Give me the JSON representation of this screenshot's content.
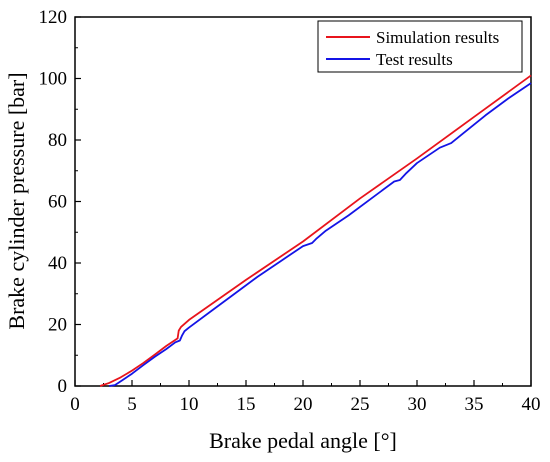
{
  "chart_data": {
    "type": "line",
    "title": "",
    "xlabel": "Brake pedal angle [°]",
    "ylabel": "Brake cylinder pressure [bar]",
    "xlim": [
      0,
      40
    ],
    "ylim": [
      0,
      120
    ],
    "xticks": [
      "0",
      "5",
      "10",
      "15",
      "20",
      "25",
      "30",
      "35",
      "40"
    ],
    "yticks": [
      "0",
      "20",
      "40",
      "60",
      "80",
      "100",
      "120"
    ],
    "grid": false,
    "legend_position": "top-right",
    "series": [
      {
        "name": "Simulation results",
        "color": "#e8141c",
        "x": [
          2.2,
          2.6,
          3.0,
          4.0,
          5.0,
          6.0,
          7.0,
          8.0,
          9.0,
          9.1,
          9.3,
          10.0,
          15.0,
          20.0,
          25.0,
          30.0,
          35.0,
          40.0
        ],
        "y": [
          0.0,
          0.5,
          1.0,
          2.8,
          5.0,
          7.5,
          10.2,
          13.0,
          15.5,
          18.0,
          19.2,
          21.5,
          34.5,
          47.0,
          61.0,
          74.0,
          87.5,
          101.0
        ]
      },
      {
        "name": "Test results",
        "color": "#1414e6",
        "x": [
          3.0,
          3.5,
          4.0,
          5.0,
          6.0,
          7.0,
          8.0,
          8.8,
          9.2,
          9.4,
          9.6,
          10.0,
          12.0,
          14.0,
          16.0,
          18.0,
          20.0,
          20.8,
          21.2,
          22.0,
          24.0,
          26.0,
          28.0,
          28.5,
          29.0,
          30.0,
          32.0,
          33.0,
          34.0,
          36.0,
          38.0,
          40.0
        ],
        "y": [
          0.0,
          0.3,
          1.5,
          4.0,
          6.8,
          9.5,
          12.0,
          14.2,
          14.8,
          16.5,
          17.8,
          19.0,
          24.5,
          30.0,
          35.5,
          40.5,
          45.5,
          46.5,
          48.0,
          50.5,
          55.5,
          61.0,
          66.5,
          67.0,
          69.0,
          72.5,
          77.5,
          79.0,
          82.0,
          88.0,
          93.5,
          98.5
        ]
      }
    ]
  }
}
